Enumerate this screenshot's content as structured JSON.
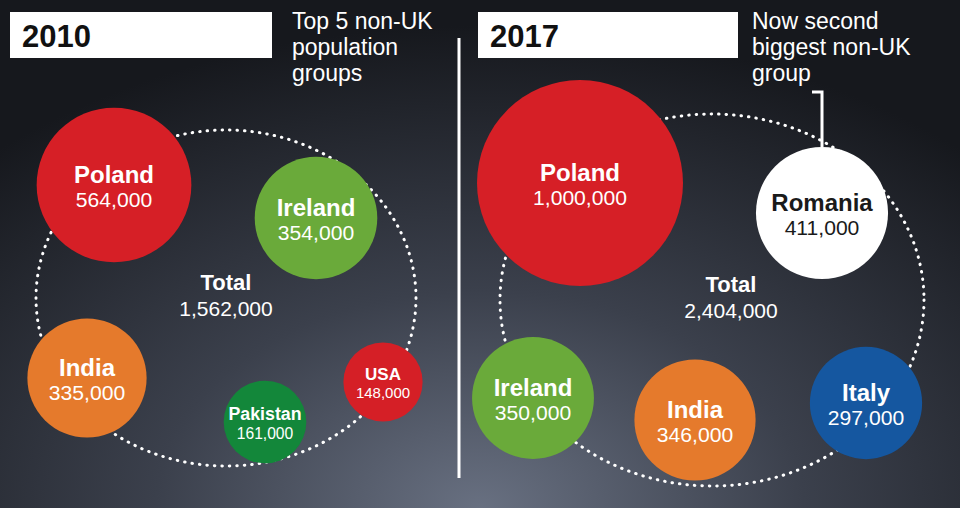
{
  "chart_data": [
    {
      "type": "bubble",
      "title": "2010",
      "subtitle": "Top 5 non-UK population groups",
      "categories": [
        "Poland",
        "Ireland",
        "India",
        "Pakistan",
        "USA"
      ],
      "values": [
        564000,
        354000,
        335000,
        161000,
        148000
      ],
      "value_labels": [
        "564,000",
        "354,000",
        "335,000",
        "161,000",
        "148,000"
      ],
      "colors": [
        "#d61f26",
        "#6aaa3a",
        "#e57a2c",
        "#13873a",
        "#d51f26"
      ],
      "data_labels": true,
      "total": {
        "label": "Total",
        "value": 1562000,
        "value_label": "1,562,000"
      }
    },
    {
      "type": "bubble",
      "title": "2017",
      "annotation": "Now second biggest non-UK group",
      "categories": [
        "Poland",
        "Romania",
        "Ireland",
        "India",
        "Italy"
      ],
      "values": [
        1000000,
        411000,
        350000,
        346000,
        297000
      ],
      "value_labels": [
        "1,000,000",
        "411,000",
        "350,000",
        "346,000",
        "297,000"
      ],
      "colors": [
        "#d61f26",
        "#ffffff",
        "#6aaa3a",
        "#e57a2c",
        "#1557a0"
      ],
      "data_labels": true,
      "total": {
        "label": "Total",
        "value": 2404000,
        "value_label": "2,404,000"
      }
    }
  ]
}
